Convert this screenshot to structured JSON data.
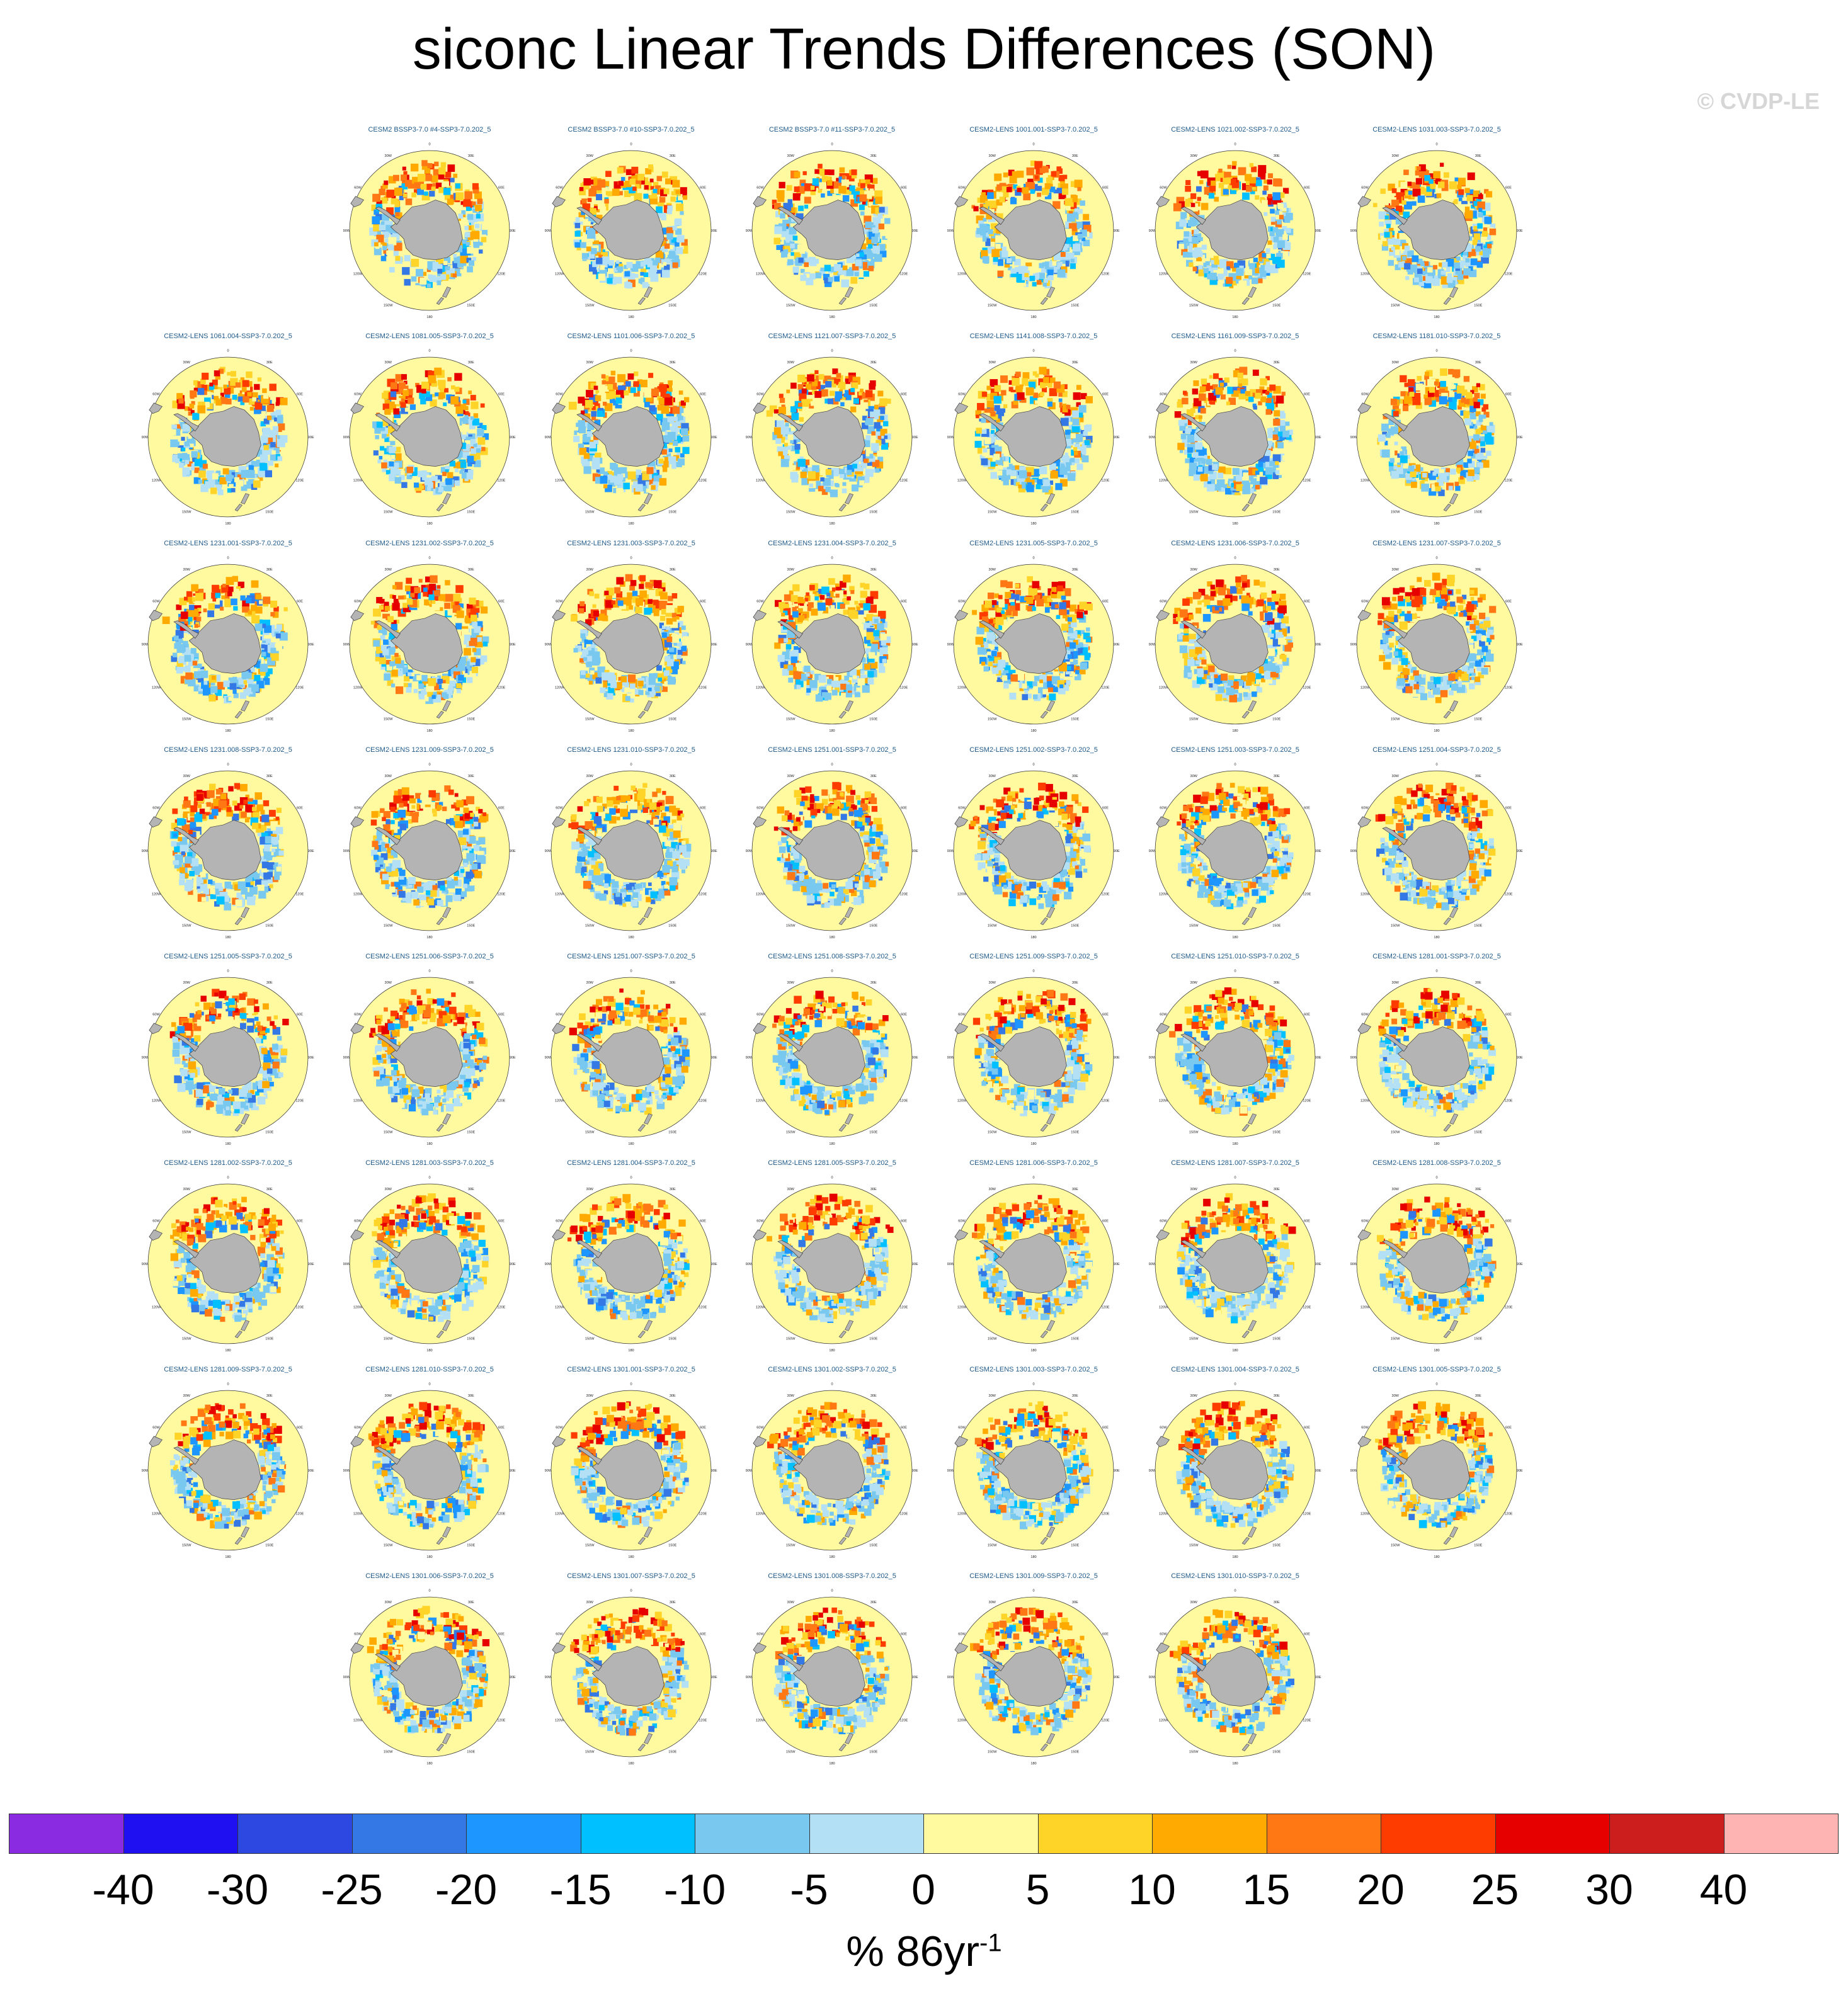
{
  "title": "siconc Linear Trends Differences (SON)",
  "copyright": "© CVDP-LE",
  "map_labels": {
    "lon": [
      "0",
      "30E",
      "60E",
      "90E",
      "120E",
      "150E",
      "180",
      "150W",
      "120W",
      "90W",
      "60W",
      "30W"
    ]
  },
  "colors": {
    "land": "#b4b4b4",
    "ocean_zero": "#fff9a0"
  },
  "panel_rows": [
    [
      "CESM2 BSSP3-7.0 #4-SSP3-7.0.202_5",
      "CESM2 BSSP3-7.0 #10-SSP3-7.0.202_5",
      "CESM2 BSSP3-7.0 #11-SSP3-7.0.202_5",
      "CESM2-LENS 1001.001-SSP3-7.0.202_5",
      "CESM2-LENS 1021.002-SSP3-7.0.202_5",
      "CESM2-LENS 1031.003-SSP3-7.0.202_5"
    ],
    [
      "CESM2-LENS 1061.004-SSP3-7.0.202_5",
      "CESM2-LENS 1081.005-SSP3-7.0.202_5",
      "CESM2-LENS 1101.006-SSP3-7.0.202_5",
      "CESM2-LENS 1121.007-SSP3-7.0.202_5",
      "CESM2-LENS 1141.008-SSP3-7.0.202_5",
      "CESM2-LENS 1161.009-SSP3-7.0.202_5",
      "CESM2-LENS 1181.010-SSP3-7.0.202_5"
    ],
    [
      "CESM2-LENS 1231.001-SSP3-7.0.202_5",
      "CESM2-LENS 1231.002-SSP3-7.0.202_5",
      "CESM2-LENS 1231.003-SSP3-7.0.202_5",
      "CESM2-LENS 1231.004-SSP3-7.0.202_5",
      "CESM2-LENS 1231.005-SSP3-7.0.202_5",
      "CESM2-LENS 1231.006-SSP3-7.0.202_5",
      "CESM2-LENS 1231.007-SSP3-7.0.202_5"
    ],
    [
      "CESM2-LENS 1231.008-SSP3-7.0.202_5",
      "CESM2-LENS 1231.009-SSP3-7.0.202_5",
      "CESM2-LENS 1231.010-SSP3-7.0.202_5",
      "CESM2-LENS 1251.001-SSP3-7.0.202_5",
      "CESM2-LENS 1251.002-SSP3-7.0.202_5",
      "CESM2-LENS 1251.003-SSP3-7.0.202_5",
      "CESM2-LENS 1251.004-SSP3-7.0.202_5"
    ],
    [
      "CESM2-LENS 1251.005-SSP3-7.0.202_5",
      "CESM2-LENS 1251.006-SSP3-7.0.202_5",
      "CESM2-LENS 1251.007-SSP3-7.0.202_5",
      "CESM2-LENS 1251.008-SSP3-7.0.202_5",
      "CESM2-LENS 1251.009-SSP3-7.0.202_5",
      "CESM2-LENS 1251.010-SSP3-7.0.202_5",
      "CESM2-LENS 1281.001-SSP3-7.0.202_5"
    ],
    [
      "CESM2-LENS 1281.002-SSP3-7.0.202_5",
      "CESM2-LENS 1281.003-SSP3-7.0.202_5",
      "CESM2-LENS 1281.004-SSP3-7.0.202_5",
      "CESM2-LENS 1281.005-SSP3-7.0.202_5",
      "CESM2-LENS 1281.006-SSP3-7.0.202_5",
      "CESM2-LENS 1281.007-SSP3-7.0.202_5",
      "CESM2-LENS 1281.008-SSP3-7.0.202_5"
    ],
    [
      "CESM2-LENS 1281.009-SSP3-7.0.202_5",
      "CESM2-LENS 1281.010-SSP3-7.0.202_5",
      "CESM2-LENS 1301.001-SSP3-7.0.202_5",
      "CESM2-LENS 1301.002-SSP3-7.0.202_5",
      "CESM2-LENS 1301.003-SSP3-7.0.202_5",
      "CESM2-LENS 1301.004-SSP3-7.0.202_5",
      "CESM2-LENS 1301.005-SSP3-7.0.202_5"
    ],
    [
      "CESM2-LENS 1301.006-SSP3-7.0.202_5",
      "CESM2-LENS 1301.007-SSP3-7.0.202_5",
      "CESM2-LENS 1301.008-SSP3-7.0.202_5",
      "CESM2-LENS 1301.009-SSP3-7.0.202_5",
      "CESM2-LENS 1301.010-SSP3-7.0.202_5"
    ]
  ],
  "colorbar": {
    "colors": [
      "#8a2be2",
      "#1e10f0",
      "#2d48e0",
      "#3478e6",
      "#1e96ff",
      "#00c0ff",
      "#78c8f0",
      "#b4e0f5",
      "#fff9a0",
      "#ffd428",
      "#ffaa00",
      "#ff7814",
      "#ff3c00",
      "#e60000",
      "#cd1e1e",
      "#ffb4b4"
    ],
    "labels": [
      "-40",
      "-30",
      "-25",
      "-20",
      "-15",
      "-10",
      "-5",
      "0",
      "5",
      "10",
      "15",
      "20",
      "25",
      "30",
      "40"
    ],
    "units": "% 86yr",
    "units_exponent": "-1"
  }
}
